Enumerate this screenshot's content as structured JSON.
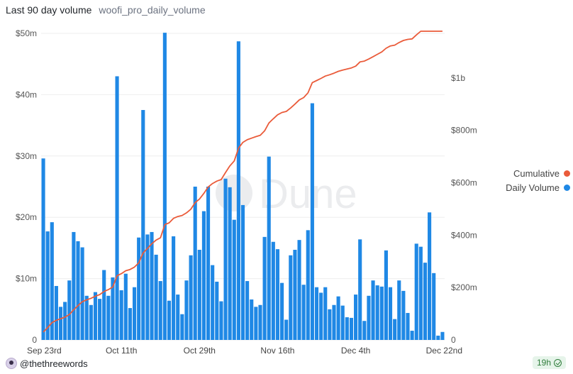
{
  "header": {
    "title": "Last 90 day volume",
    "subtitle": "woofi_pro_daily_volume"
  },
  "watermark": "Dune",
  "footer": {
    "author": "@thethreewords",
    "age": "19h"
  },
  "colors": {
    "bar": "#1f88e5",
    "line": "#ea5b3a",
    "grid": "#eeeeee"
  },
  "legend": [
    {
      "label": "Cumulative",
      "color": "#ea5b3a"
    },
    {
      "label": "Daily Volume",
      "color": "#1f88e5"
    }
  ],
  "chart_data": {
    "type": "bar",
    "x_tick_labels": [
      "Sep 23rd",
      "Oct 11th",
      "Oct 29th",
      "Nov 16th",
      "Dec 4th",
      "Dec 22nd"
    ],
    "y_left": {
      "ticks": [
        "0",
        "$10m",
        "$20m",
        "$30m",
        "$40m",
        "$50m"
      ],
      "range": [
        0,
        50
      ]
    },
    "y_right": {
      "ticks": [
        "0",
        "$200m",
        "$400m",
        "$600m",
        "$800m",
        "$1b"
      ],
      "range": [
        0,
        1170
      ]
    },
    "grid": true,
    "legend_position": "right",
    "series": [
      {
        "name": "Daily Volume",
        "axis": "left",
        "values": [
          29.6,
          17.7,
          19.2,
          8.8,
          5.4,
          6.2,
          9.7,
          17.6,
          16.1,
          15.1,
          7.2,
          5.7,
          7.8,
          6.7,
          11.4,
          7.2,
          10.2,
          43.0,
          8.1,
          10.8,
          5.2,
          8.6,
          16.7,
          37.5,
          17.2,
          17.6,
          13.9,
          9.6,
          50.1,
          6.4,
          16.9,
          7.4,
          4.2,
          9.7,
          13.8,
          25.0,
          14.7,
          21.0,
          25.0,
          12.2,
          9.5,
          6.3,
          26.3,
          24.9,
          19.6,
          48.7,
          22.0,
          9.6,
          6.6,
          5.4,
          5.7,
          16.8,
          29.9,
          16.0,
          14.8,
          9.3,
          3.3,
          13.8,
          14.7,
          16.3,
          9.0,
          17.9,
          38.6,
          8.6,
          7.7,
          8.6,
          5.0,
          5.7,
          7.1,
          5.6,
          3.7,
          3.6,
          7.4,
          16.4,
          3.1,
          7.2,
          9.7,
          8.9,
          8.7,
          14.6,
          8.6,
          3.4,
          9.7,
          8.0,
          4.4,
          1.5,
          15.7,
          15.2,
          12.6,
          20.8,
          10.9,
          0.7,
          1.3
        ]
      },
      {
        "name": "Cumulative",
        "axis": "right",
        "values": [
          30,
          47,
          66,
          75,
          81,
          87,
          97,
          115,
          131,
          146,
          153,
          159,
          167,
          173,
          185,
          192,
          202,
          245,
          253,
          264,
          269,
          278,
          294,
          332,
          349,
          367,
          381,
          390,
          440,
          447,
          464,
          471,
          475,
          485,
          499,
          524,
          538,
          559,
          584,
          597,
          606,
          612,
          639,
          664,
          683,
          732,
          754,
          764,
          770,
          776,
          781,
          798,
          828,
          844,
          859,
          868,
          872,
          885,
          900,
          916,
          925,
          943,
          982,
          990,
          998,
          1007,
          1012,
          1018,
          1025,
          1030,
          1034,
          1038,
          1045,
          1061,
          1064,
          1072,
          1081,
          1090,
          1099,
          1113,
          1122,
          1125,
          1135,
          1143,
          1147,
          1149,
          1164,
          1179,
          1192,
          1213,
          1223,
          1224,
          1225
        ]
      }
    ]
  }
}
